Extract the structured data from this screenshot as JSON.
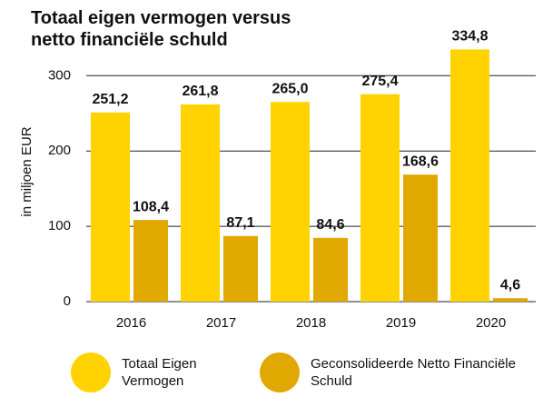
{
  "chart_data": {
    "type": "bar",
    "title": "Totaal eigen vermogen versus netto financiële schuld",
    "y_label": "in miljoen EUR",
    "categories": [
      "2016",
      "2017",
      "2018",
      "2019",
      "2020"
    ],
    "series": [
      {
        "name": "Totaal Eigen Vermogen",
        "color": "#ffd200",
        "values": [
          251.2,
          261.8,
          265.0,
          275.4,
          334.8
        ],
        "value_labels": [
          "251,2",
          "261,8",
          "265,0",
          "275,4",
          "334,8"
        ]
      },
      {
        "name": "Geconsolideerde Netto Financiële Schuld",
        "color": "#e0a800",
        "values": [
          108.4,
          87.1,
          84.6,
          168.6,
          4.6
        ],
        "value_labels": [
          "108,4",
          "87,1",
          "84,6",
          "168,6",
          "4,6"
        ]
      }
    ],
    "ylim": [
      0,
      345
    ],
    "yticks": [
      0,
      100,
      200,
      300
    ],
    "grid": true
  }
}
